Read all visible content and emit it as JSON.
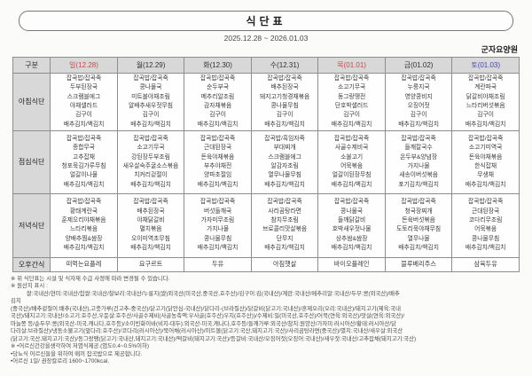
{
  "title": "식단표",
  "date_range": "2025.12.28 ~ 2026.01.03",
  "facility": "군자요양원",
  "colors": {
    "sunday_holiday_red": "#c24a4a",
    "saturday_blue": "#4646ae",
    "header_bg": "#d8d8d8"
  },
  "table": {
    "corner_label": "구분",
    "days": [
      {
        "label": "일(12.28)",
        "color": "red"
      },
      {
        "label": "월(12.29)",
        "color": "black"
      },
      {
        "label": "화(12.30)",
        "color": "black"
      },
      {
        "label": "수(12.31)",
        "color": "black"
      },
      {
        "label": "목(01.01)",
        "color": "red"
      },
      {
        "label": "금(01.02)",
        "color": "black"
      },
      {
        "label": "토(01.03)",
        "color": "blue"
      }
    ],
    "rows": [
      {
        "label": "아침식단",
        "cells": [
          [
            "잡곡밥/잡곡죽",
            "두부된장국",
            "스크램블에그",
            "야채샐러드",
            "김구이",
            "배추김치/백김치"
          ],
          [
            "잡곡밥/잡곡죽",
            "콩나물국",
            "미트볼야채조림",
            "알배추새우젓무침",
            "김구이",
            "배추김치/백김치"
          ],
          [
            "잡곡밥/잡곡죽",
            "순두부국",
            "메추리알조림",
            "감자채볶음",
            "김구이",
            "배추김치/백김치"
          ],
          [
            "잡곡밥/잡곡죽",
            "배추된장국",
            "돼지고기청경채볶음",
            "콩나물무침",
            "김구이",
            "배추김치/백김치"
          ],
          [
            "잡곡밥/잡곡죽",
            "소고기무국",
            "동그랑땡전",
            "단호박샐러드",
            "김구이",
            "배추김치/백김치"
          ],
          [
            "잡곡밥/잡곡죽",
            "누룽지국",
            "영양콩비지",
            "오징어젓",
            "김구이",
            "배추김치/백김치"
          ],
          [
            "잡곡밥/잡곡죽",
            "계란파국",
            "닭갈비야채조림",
            "느타리버섯볶음",
            "김구이",
            "배추김치/백김치"
          ]
        ]
      },
      {
        "label": "점심식단",
        "cells": [
          [
            "잡곡밥/잡곡죽",
            "종합무국",
            "고추잡채",
            "청포묵김가루무침",
            "얼갈이나물",
            "배추김치/백김치"
          ],
          [
            "잡곡밥/잡곡죽",
            "소고기무국",
            "강된장두부조림",
            "새우살숙주굴소스볶음",
            "치커리겉절이",
            "배추김치/백김치"
          ],
          [
            "잡곡밥/잡곡죽",
            "근대된장국",
            "돈육야채볶음",
            "부추야채전",
            "양파초절임",
            "배추김치/백김치"
          ],
          [
            "잡곡밥/흑임자죽",
            "부대찌개",
            "스크램블에그",
            "알감자조림",
            "열무나물무침",
            "배추김치/백김치"
          ],
          [
            "잡곡밥/잡곡죽",
            "사골수제비국",
            "소불고기",
            "어묵볶음",
            "얼갈이된장무침",
            "배추김치/백김치"
          ],
          [
            "잡곡밥/잡곡죽",
            "들깨칼국수",
            "온두부&양념장",
            "가지나물",
            "새송이버섯볶음",
            "포기김치/백김치"
          ],
          [
            "잡곡밥/잡곡죽",
            "소고기미역국",
            "돈육야채볶음",
            "한식잡채",
            "무생채",
            "배추김치/백김치"
          ]
        ]
      },
      {
        "label": "저녁식단",
        "cells": [
          [
            "잡곡밥/잡곡죽",
            "황태계란국",
            "훈제오리야채볶음",
            "느타리볶음",
            "양배추찜&쌈장",
            "배추김치/백김치"
          ],
          [
            "잡곡밥/잡곡죽",
            "배추된장국",
            "야채닭갈비",
            "멸치볶음",
            "오이미역초무침",
            "배추김치/백김치"
          ],
          [
            "잡곡밥/잡곡죽",
            "버섯들깨국",
            "가자미무조림",
            "가지나물",
            "콩나물무침",
            "배추김치/백김치"
          ],
          [
            "잡곡밥/잡곡죽",
            "사리곰탕라면",
            "참치무조림",
            "브로콜리맛살볶음",
            "단무지",
            "배추김치/백김치"
          ],
          [
            "잡곡밥/잡곡죽",
            "콩나물국",
            "들깨닭갈비",
            "호박새우젓나물",
            "상추쌈&쌈장",
            "배추김치/백김치"
          ],
          [
            "잡곡밥/잡곡죽",
            "청국장찌개",
            "돈육버섯볶음",
            "도토리묵야채무침",
            "열무나물",
            "배추김치/백김치"
          ],
          [
            "잡곡밥/잡곡죽",
            "근대된장국",
            "코다리무조림",
            "어묵볶음",
            "콩나물무침",
            "배추김치/백김치"
          ]
        ]
      },
      {
        "label": "오후간식",
        "cells": [
          [
            "떠먹는요플레"
          ],
          [
            "요구르트"
          ],
          [
            "두유"
          ],
          [
            "아침햇살"
          ],
          [
            "바이오플레인"
          ],
          [
            "블루베리주스"
          ],
          [
            "삼육두유"
          ]
        ]
      }
    ]
  },
  "notes": [
    "※ 위 식단표는 시설 및 식자재 수급 사정에 따라 변경될 수 있습니다.",
    "※ 원산지 표시 :",
    "          쌀:국내산/현미:국내산/찹쌀:국내산/찰보리:국내산/누룽지(쌀)외국산(미국산,중국산,호주산)/김구이:김(국내산)/계란:국내산/메추리알:국내산/두부:콩(외국산)/배추",
    "김치",
    "(중국산)/배추겉절이:배추(국내산),고춧가루(건고추-중국산)/닭고기(닭안심-국내산)/닭다리-(브라질산)/닭갈비(닭고기:국내산)/훈제오리(오리:국내산)/돼지고기(제육:국내",
    "국산)/돼지고기:국내산/소고기:호주산,우둔살:호주산/사골수제비(사골농축액:우사골(호주산)우지(호주산))/수제비:밀(미국산,호주산)/어묵(연육:외국산)/맛살(연육:외국산)/",
    "마늘쫑 등/순두부:콩(외국산-미국,캐나다,호주등)/소이빈화이바(비지-대두):외국산-미국,캐나다,호주등/들깨가루:외국산/참치:원양산/가자미:러시아산/황태:러시아산/닭",
    "다리살:브라질산)/냉동소불고기(앞다리:호주산)/코다리(러시아산)/북어채(러시아산)/미트볼(닭고기:국산,돼지고기:국산)/사리곰탕라면(중국산)/멸치:국내산/새우살:외국산",
    "(닭고기:국산,돼지고기:국산)/동그랑땡(닭고기:국내산,돼지고기:국내산)/떡갈비(돼지고기:국산)/등갈비:국내산/오징어젓(오징어:국내산)/새우젓:국내산/고추잡채(돼지고기:국산)",
    "※ •어르신건강을생각하여 저염식제공.(염도0.4~0.5%이하)",
    "•당뇨식 어르신들을 위하여 매끼 잡곡밥으로 제공합니다.",
    "•어르신 1일/ 권장칼로리 1600~1700kcal."
  ]
}
